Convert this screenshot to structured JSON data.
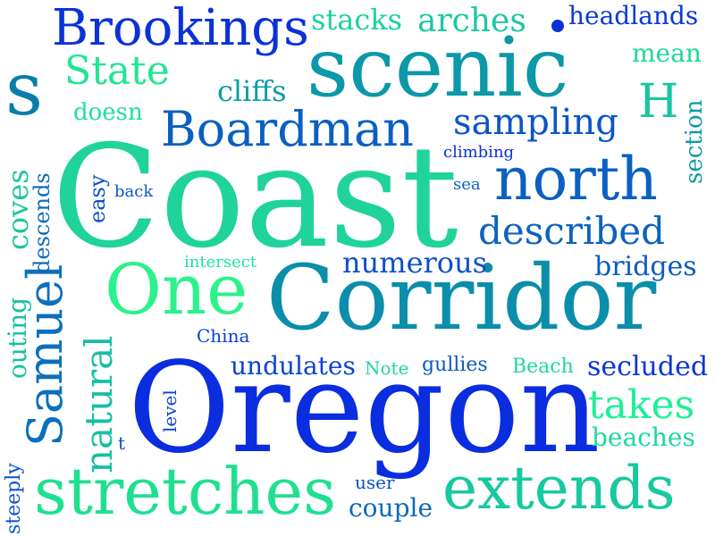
{
  "words": [
    {
      "key": "coast",
      "text": "Coast",
      "color": "#1fd39a"
    },
    {
      "key": "oregon",
      "text": "Oregon",
      "color": "#0a2de0"
    },
    {
      "key": "corridor",
      "text": "Corridor",
      "color": "#0b8eaa"
    },
    {
      "key": "scenic",
      "text": "scenic",
      "color": "#0b98a8"
    },
    {
      "key": "stretches",
      "text": "stretches",
      "color": "#1fe08f"
    },
    {
      "key": "extends",
      "text": "extends",
      "color": "#17c9a0"
    },
    {
      "key": "north",
      "text": "north",
      "color": "#0b60c2"
    },
    {
      "key": "one",
      "text": "One",
      "color": "#2bf28a"
    },
    {
      "key": "brookings",
      "text": "Brookings",
      "color": "#0b32d8"
    },
    {
      "key": "boardman",
      "text": "Boardman",
      "color": "#0b5fc0"
    },
    {
      "key": "s",
      "text": "s",
      "color": "#0a7dac"
    },
    {
      "key": "samuel",
      "text": "Samuel",
      "color": "#0b6fbc"
    },
    {
      "key": "described",
      "text": "described",
      "color": "#0b62c0"
    },
    {
      "key": "state",
      "text": "State",
      "color": "#1fe690"
    },
    {
      "key": "sampling",
      "text": "sampling",
      "color": "#0b55c8"
    },
    {
      "key": "natural",
      "text": "natural",
      "color": "#15c0a2"
    },
    {
      "key": "takes",
      "text": "takes",
      "color": "#1ef094"
    },
    {
      "key": "stacks",
      "text": "stacks",
      "color": "#1bd29c"
    },
    {
      "key": "arches",
      "text": "arches",
      "color": "#1bc8a2"
    },
    {
      "key": "numerous",
      "text": "numerous",
      "color": "#0b50c8"
    },
    {
      "key": "h",
      "text": "H",
      "color": "#18c5a0"
    },
    {
      "key": "undulates",
      "text": "undulates",
      "color": "#0b42d0"
    },
    {
      "key": "secluded",
      "text": "secluded",
      "color": "#0b36d8"
    },
    {
      "key": "beaches",
      "text": "beaches",
      "color": "#1dd8a0"
    },
    {
      "key": "bridges",
      "text": "bridges",
      "color": "#0b5cc2"
    },
    {
      "key": "couple",
      "text": "couple",
      "color": "#0b6ab6"
    },
    {
      "key": "headlands",
      "text": "headlands",
      "color": "#0b3ad6"
    },
    {
      "key": "cliffs",
      "text": "cliffs",
      "color": "#0b9ca8"
    },
    {
      "key": "coves",
      "text": "coves",
      "color": "#1bc69e"
    },
    {
      "key": "section",
      "text": "section",
      "color": "#0b9aa6"
    },
    {
      "key": "outing",
      "text": "outing",
      "color": "#15c2a0"
    },
    {
      "key": "mean",
      "text": "mean",
      "color": "#1dd898"
    },
    {
      "key": "doesn",
      "text": "doesn",
      "color": "#1de09a"
    },
    {
      "key": "descends",
      "text": "descends",
      "color": "#0b6ab8"
    },
    {
      "key": "easy",
      "text": "easy",
      "color": "#0b52c6"
    },
    {
      "key": "steeply",
      "text": "steeply",
      "color": "#0b54c8"
    },
    {
      "key": "gullies",
      "text": "gullies",
      "color": "#0b5cc2"
    },
    {
      "key": "beach",
      "text": "Beach",
      "color": "#1dd89a"
    },
    {
      "key": "note",
      "text": "Note",
      "color": "#1dd8a0"
    },
    {
      "key": "intersect",
      "text": "intersect",
      "color": "#1de49a"
    },
    {
      "key": "china",
      "text": "China",
      "color": "#0b40d2"
    },
    {
      "key": "level",
      "text": "level",
      "color": "#0b44d0"
    },
    {
      "key": "climbing",
      "text": "climbing",
      "color": "#0b30d8"
    },
    {
      "key": "back",
      "text": "back",
      "color": "#0b56c6"
    },
    {
      "key": "sea",
      "text": "sea",
      "color": "#0b60c0"
    },
    {
      "key": "user",
      "text": "user",
      "color": "#0b50c8"
    },
    {
      "key": "t",
      "text": "t",
      "color": "#0b50c8"
    }
  ]
}
